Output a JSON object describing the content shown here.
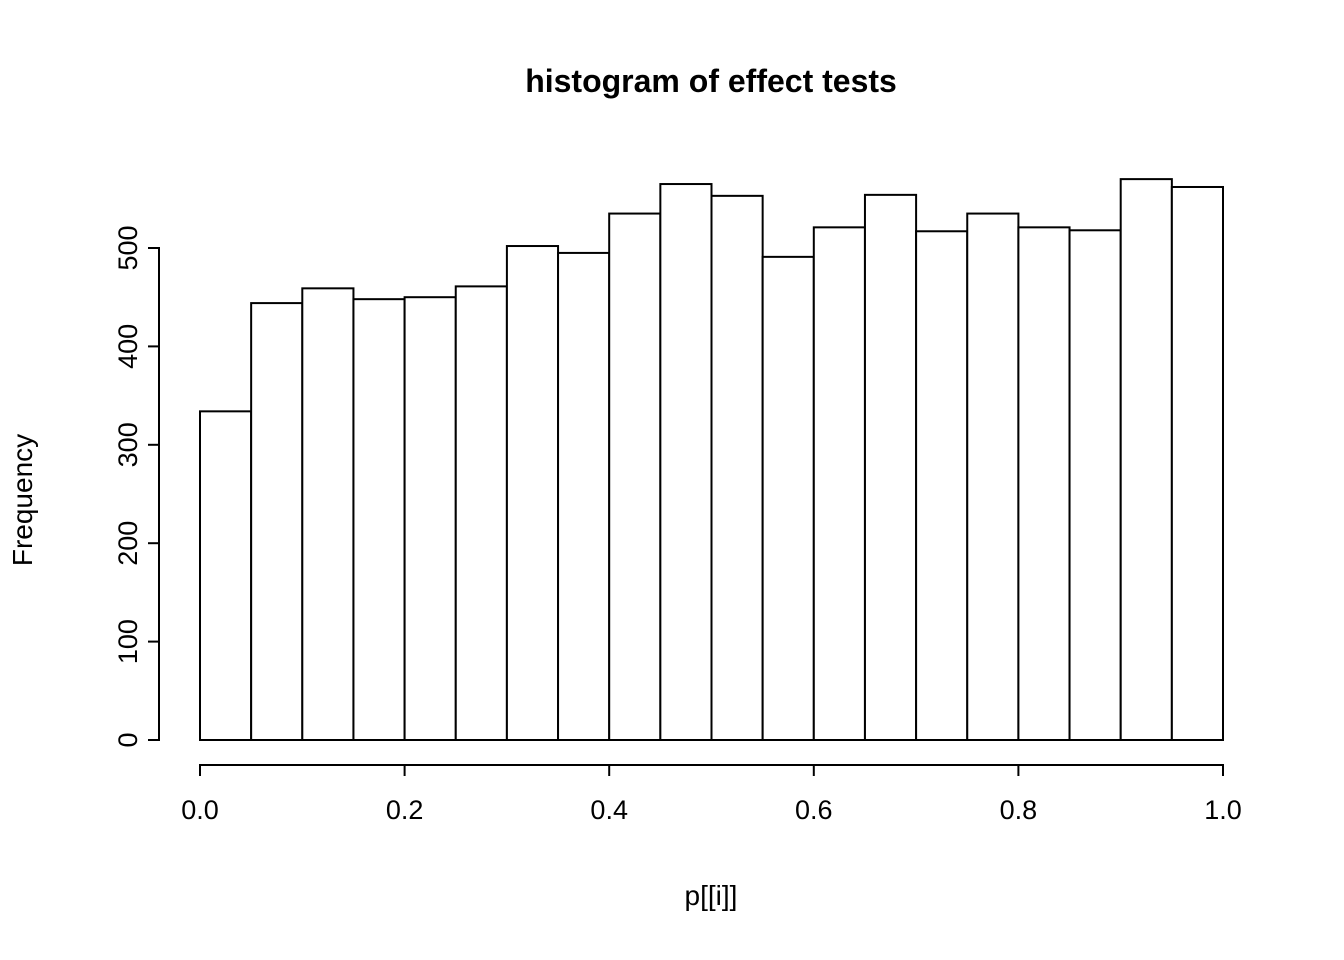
{
  "title": "histogram of effect tests",
  "chart_data": {
    "type": "bar",
    "subtype": "histogram",
    "title": "histogram of effect tests",
    "xlabel": "p[[i]]",
    "ylabel": "Frequency",
    "bin_edges": [
      0.0,
      0.05,
      0.1,
      0.15,
      0.2,
      0.25,
      0.3,
      0.35,
      0.4,
      0.45,
      0.5,
      0.55,
      0.6,
      0.65,
      0.7,
      0.75,
      0.8,
      0.85,
      0.9,
      0.95,
      1.0
    ],
    "counts": [
      334,
      444,
      459,
      448,
      450,
      461,
      502,
      495,
      535,
      565,
      553,
      491,
      521,
      554,
      517,
      535,
      521,
      518,
      570,
      562
    ],
    "x_ticks": [
      0.0,
      0.2,
      0.4,
      0.6,
      0.8,
      1.0
    ],
    "x_tick_labels": [
      "0.0",
      "0.2",
      "0.4",
      "0.6",
      "0.8",
      "1.0"
    ],
    "y_ticks": [
      0,
      100,
      200,
      300,
      400,
      500
    ],
    "y_tick_labels": [
      "0",
      "100",
      "200",
      "300",
      "400",
      "500"
    ],
    "xlim": [
      0.0,
      1.0
    ],
    "ylim": [
      0,
      570
    ],
    "grid": false,
    "legend": null,
    "bar_fill": "#ffffff",
    "bar_stroke": "#000000",
    "axis_color": "#000000",
    "background": "#ffffff"
  }
}
